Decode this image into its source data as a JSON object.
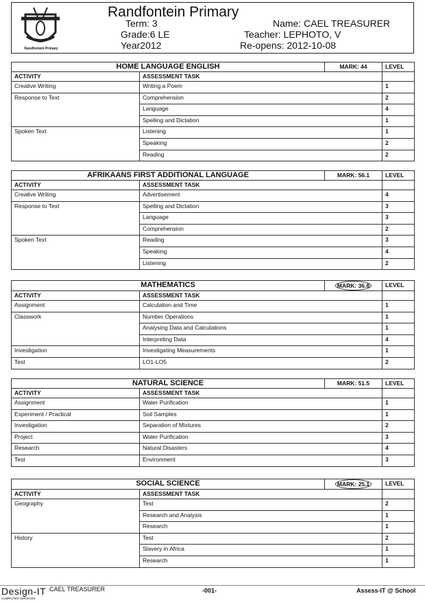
{
  "header": {
    "school": "Randfontein Primary",
    "logo_caption": "Randfontein Primary",
    "term": "Term:  3",
    "grade": "Grade:6 LE",
    "year": "Year2012",
    "name": "Name: CAEL TREASURER",
    "teacher": "Teacher: LEPHOTO, V",
    "reopens": "Re-opens: 2012-10-08"
  },
  "labels": {
    "activity": "ACTIVITY",
    "task": "ASSESSMENT TASK",
    "level": "LEVEL"
  },
  "sections": [
    {
      "subject": "HOME LANGUAGE ENGLISH",
      "mark": "MARK:  44",
      "circled": false,
      "groups": [
        {
          "activity": "Creative Writing",
          "tasks": [
            {
              "task": "Writing a Poem",
              "level": "1"
            }
          ]
        },
        {
          "activity": "Response to Text",
          "tasks": [
            {
              "task": "Comprehension",
              "level": "2"
            },
            {
              "task": "Language",
              "level": "4"
            },
            {
              "task": "Spelling and Dictation",
              "level": "1"
            }
          ]
        },
        {
          "activity": "Spoken Text",
          "tasks": [
            {
              "task": "Listening",
              "level": "1"
            },
            {
              "task": "Speaking",
              "level": "2"
            },
            {
              "task": "Reading",
              "level": "2"
            }
          ]
        }
      ]
    },
    {
      "subject": "AFRIKAANS FIRST ADDITIONAL LANGUAGE",
      "mark": "MARK: 56.1",
      "circled": false,
      "groups": [
        {
          "activity": "Creative Writing",
          "tasks": [
            {
              "task": "Advertisement",
              "level": "4"
            }
          ]
        },
        {
          "activity": "Response to Text",
          "tasks": [
            {
              "task": "Spelling and Dictation",
              "level": "3"
            },
            {
              "task": "Language",
              "level": "3"
            },
            {
              "task": "Comprehension",
              "level": "2"
            }
          ]
        },
        {
          "activity": "Spoken Text",
          "tasks": [
            {
              "task": "Reading",
              "level": "3"
            },
            {
              "task": "Speaking",
              "level": "4"
            },
            {
              "task": "Listening",
              "level": "2"
            }
          ]
        }
      ]
    },
    {
      "subject": "MATHEMATICS",
      "mark": "MARK: 36.8",
      "circled": true,
      "groups": [
        {
          "activity": "Assignment",
          "tasks": [
            {
              "task": "Calculation and Time",
              "level": "1"
            }
          ]
        },
        {
          "activity": "Classwork",
          "tasks": [
            {
              "task": "Number Operations",
              "level": "1"
            },
            {
              "task": "Analysing Data and Calculations",
              "level": "1"
            },
            {
              "task": "Interpreting Data",
              "level": "4"
            }
          ]
        },
        {
          "activity": "Investigation",
          "tasks": [
            {
              "task": "Investigating Measurements",
              "level": "1"
            }
          ]
        },
        {
          "activity": "Test",
          "tasks": [
            {
              "task": "LO1-LO5",
              "level": "2"
            }
          ]
        }
      ]
    },
    {
      "subject": "NATURAL SCIENCE",
      "mark": "MARK: 51.5",
      "circled": false,
      "groups": [
        {
          "activity": "Assignment",
          "tasks": [
            {
              "task": "Water Purification",
              "level": "1"
            }
          ]
        },
        {
          "activity": "Experiment / Practical",
          "tasks": [
            {
              "task": "Soil Samples",
              "level": "1"
            }
          ]
        },
        {
          "activity": "Investigation",
          "tasks": [
            {
              "task": "Separation of Mixtures",
              "level": "2"
            }
          ]
        },
        {
          "activity": "Project",
          "tasks": [
            {
              "task": "Water Purification",
              "level": "3"
            }
          ]
        },
        {
          "activity": "Research",
          "tasks": [
            {
              "task": "Natural Disasters",
              "level": "4"
            }
          ]
        },
        {
          "activity": "Test",
          "tasks": [
            {
              "task": "Environment",
              "level": "3"
            }
          ]
        }
      ]
    },
    {
      "subject": "SOCIAL SCIENCE",
      "mark": "MARK: 25.1",
      "circled": true,
      "groups": [
        {
          "activity": "Geography",
          "tasks": [
            {
              "task": "Test",
              "level": "2"
            },
            {
              "task": "Research and Analysis",
              "level": "1"
            },
            {
              "task": "Research",
              "level": "1"
            }
          ]
        },
        {
          "activity": "History",
          "tasks": [
            {
              "task": "Test",
              "level": "2"
            },
            {
              "task": "Slavery in Africa",
              "level": "1"
            },
            {
              "task": "Research",
              "level": "1"
            }
          ]
        }
      ]
    }
  ],
  "footer": {
    "brand": "Design-IT",
    "brand_sub": "COMPUTER SERVICES",
    "student": "CAEL TREASURER",
    "page": "-001-",
    "product": "Assess-IT @ School"
  }
}
